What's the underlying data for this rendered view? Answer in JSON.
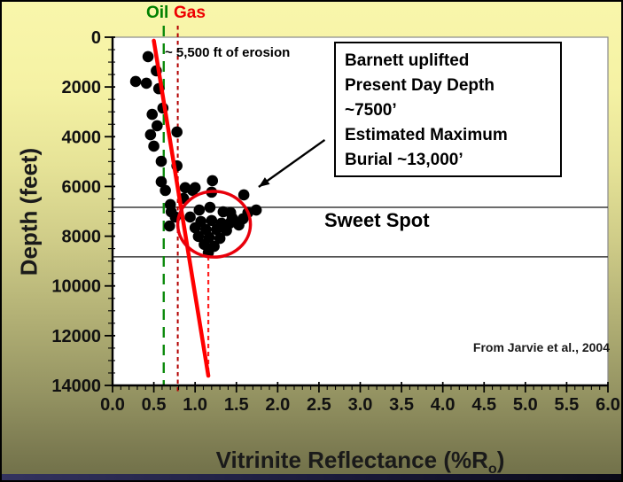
{
  "slide": {
    "oil_label": "Oil",
    "oil_color": "#008000",
    "gas_label": "Gas",
    "gas_color": "#ee0000",
    "erosion_note": "~ 5,500 ft of erosion",
    "annotation_box_lines": [
      "Barnett uplifted",
      "Present Day Depth",
      "~7500’",
      "Estimated Maximum",
      "Burial ~13,000’"
    ],
    "sweet_spot_label": "Sweet Spot",
    "credit": "From Jarvie et al., 2004",
    "background_top_color": "#f9f6ab",
    "background_bottom_color": "#6f6f48"
  },
  "chart_data": {
    "type": "scatter",
    "xlabel": "Vitrinite Reflectance (%Ro)",
    "xlabel_pre": "Vitrinite Reflectance (%R",
    "xlabel_sub": "o",
    "xlabel_post": ")",
    "ylabel": "Depth (feet)",
    "xlim": [
      0.0,
      6.0
    ],
    "ylim": [
      0,
      14000
    ],
    "y_axis_inverted": true,
    "grid": false,
    "x_tick_step": 0.5,
    "x_minor_tick_step": 0.1,
    "y_tick_step": 2000,
    "y_minor_tick_step": 500,
    "x_tick_labels": [
      "0.0",
      "0.5",
      "1.0",
      "1.5",
      "2.0",
      "2.5",
      "3.0",
      "3.5",
      "4.0",
      "4.5",
      "5.0",
      "5.5",
      "6.0"
    ],
    "y_tick_labels": [
      "0",
      "2000",
      "4000",
      "6000",
      "8000",
      "10000",
      "12000",
      "14000"
    ],
    "point_color": "#000000",
    "points_ro_depth": [
      [
        0.43,
        780
      ],
      [
        0.53,
        1350
      ],
      [
        0.28,
        1780
      ],
      [
        0.41,
        1850
      ],
      [
        0.56,
        2070
      ],
      [
        0.61,
        2850
      ],
      [
        0.48,
        3100
      ],
      [
        0.54,
        3560
      ],
      [
        0.46,
        3920
      ],
      [
        0.78,
        3810
      ],
      [
        0.5,
        4380
      ],
      [
        0.59,
        4990
      ],
      [
        0.78,
        5170
      ],
      [
        0.59,
        5810
      ],
      [
        0.64,
        6160
      ],
      [
        0.97,
        6160
      ],
      [
        0.86,
        6480
      ],
      [
        0.7,
        6730
      ],
      [
        0.88,
        6050
      ],
      [
        1.0,
        6050
      ],
      [
        1.21,
        5770
      ],
      [
        1.2,
        6230
      ],
      [
        1.59,
        6340
      ],
      [
        1.74,
        6950
      ],
      [
        1.43,
        7050
      ],
      [
        1.42,
        7480
      ],
      [
        1.53,
        7550
      ],
      [
        1.05,
        6950
      ],
      [
        1.18,
        6840
      ],
      [
        1.34,
        7020
      ],
      [
        0.94,
        7230
      ],
      [
        1.07,
        7410
      ],
      [
        1.2,
        7370
      ],
      [
        1.32,
        7480
      ],
      [
        1.45,
        7270
      ],
      [
        1.0,
        7660
      ],
      [
        1.13,
        7730
      ],
      [
        1.26,
        7730
      ],
      [
        1.38,
        7770
      ],
      [
        1.04,
        8010
      ],
      [
        1.17,
        8050
      ],
      [
        1.3,
        8090
      ],
      [
        1.11,
        8330
      ],
      [
        1.23,
        8410
      ],
      [
        1.16,
        8660
      ],
      [
        0.71,
        7020
      ],
      [
        0.76,
        7230
      ],
      [
        0.69,
        7590
      ],
      [
        1.64,
        7050
      ],
      [
        1.58,
        7300
      ]
    ],
    "oil_window_line": {
      "x": 0.62,
      "color": "#0c8a0c",
      "style": "dashed"
    },
    "gas_window_line": {
      "x": 0.79,
      "color": "#b30000",
      "style": "dashed"
    },
    "trend_line": {
      "from_ro": 0.5,
      "from_depth": 140,
      "to_ro": 1.16,
      "to_depth": 13610,
      "color": "#ff0000"
    },
    "max_burial_line": {
      "x": 1.16,
      "from_depth": 8800,
      "to_depth": 13610,
      "color": "#ff2222",
      "style": "dashed"
    },
    "sweet_spot_band_depths": [
      6840,
      8830
    ],
    "sweet_spot_ellipse": {
      "center_ro": 1.23,
      "center_depth": 7520,
      "rx_ro": 0.44,
      "ry_depth": 1320,
      "color": "#e8000b"
    },
    "arrow": {
      "from_ro": 2.57,
      "from_depth": 4130,
      "to_ro": 1.77,
      "to_depth": 6020,
      "color": "#000000"
    }
  }
}
